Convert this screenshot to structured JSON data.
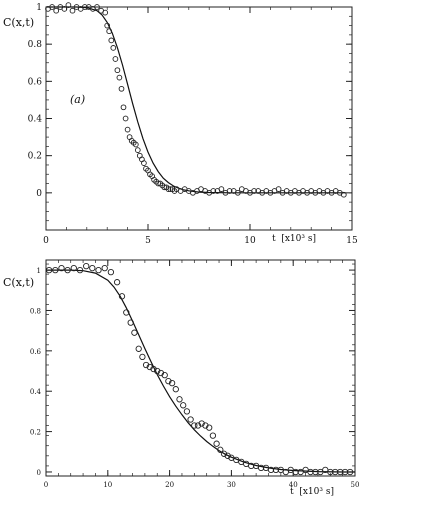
{
  "chart_data": [
    {
      "type": "scatter",
      "ylabel": "C(x,t)",
      "xlabel": "t  [x10³ s]",
      "annotation": "(a)",
      "xlim": [
        0,
        15
      ],
      "ylim": [
        -0.2,
        1.0
      ],
      "xticks": [
        0,
        5,
        10,
        15
      ],
      "xtick_labels": [
        "0",
        "5",
        "10",
        "15"
      ],
      "yticks": [
        0,
        0.2,
        0.4,
        0.6,
        0.8,
        1
      ],
      "ytick_labels": [
        "0",
        "0.2",
        "0.4",
        "0.6",
        "0.8",
        "1"
      ],
      "series": [
        {
          "kind": "markers",
          "x": [
            0.1,
            0.3,
            0.5,
            0.7,
            0.9,
            1.1,
            1.3,
            1.5,
            1.7,
            1.9,
            2.1,
            2.3,
            2.5,
            2.7,
            2.9,
            3.0,
            3.1,
            3.2,
            3.3,
            3.4,
            3.5,
            3.6,
            3.7,
            3.8,
            3.9,
            4.0,
            4.1,
            4.2,
            4.3,
            4.4,
            4.5,
            4.6,
            4.7,
            4.8,
            4.9,
            5.0,
            5.1,
            5.2,
            5.3,
            5.4,
            5.5,
            5.6,
            5.7,
            5.8,
            5.9,
            6.0,
            6.1,
            6.2,
            6.3,
            6.4,
            6.6,
            6.8,
            7.0,
            7.2,
            7.4,
            7.6,
            7.8,
            8.0,
            8.2,
            8.4,
            8.6,
            8.8,
            9.0,
            9.2,
            9.4,
            9.6,
            9.8,
            10.0,
            10.2,
            10.4,
            10.6,
            10.8,
            11.0,
            11.2,
            11.4,
            11.6,
            11.8,
            12.0,
            12.2,
            12.4,
            12.6,
            12.8,
            13.0,
            13.2,
            13.4,
            13.6,
            13.8,
            14.0,
            14.2,
            14.4,
            14.6
          ],
          "y": [
            0.99,
            1.0,
            0.98,
            1.0,
            0.99,
            1.01,
            0.98,
            1.0,
            0.99,
            1.0,
            1.0,
            0.99,
            1.0,
            0.98,
            0.97,
            0.9,
            0.87,
            0.82,
            0.78,
            0.72,
            0.66,
            0.62,
            0.56,
            0.46,
            0.4,
            0.34,
            0.3,
            0.28,
            0.27,
            0.26,
            0.23,
            0.2,
            0.18,
            0.16,
            0.13,
            0.12,
            0.1,
            0.09,
            0.07,
            0.06,
            0.05,
            0.05,
            0.04,
            0.03,
            0.03,
            0.02,
            0.02,
            0.02,
            0.01,
            0.02,
            0.01,
            0.02,
            0.01,
            0.0,
            0.01,
            0.02,
            0.01,
            0.0,
            0.01,
            0.01,
            0.02,
            0.0,
            0.01,
            0.01,
            0.0,
            0.02,
            0.01,
            0.0,
            0.01,
            0.01,
            0.0,
            0.01,
            0.0,
            0.01,
            0.02,
            0.0,
            0.01,
            0.0,
            0.01,
            0.0,
            0.01,
            0.0,
            0.01,
            0.0,
            0.01,
            0.0,
            0.01,
            0.0,
            0.01,
            0.0,
            -0.01
          ]
        },
        {
          "kind": "line",
          "x": [
            0,
            0.5,
            1,
            1.5,
            2,
            2.5,
            2.75,
            3,
            3.25,
            3.5,
            3.75,
            4,
            4.25,
            4.5,
            4.75,
            5,
            5.25,
            5.5,
            5.75,
            6,
            6.25,
            6.5,
            6.75,
            7,
            7.5,
            8,
            9,
            10,
            11,
            12,
            13,
            14,
            14.7
          ],
          "y": [
            1.0,
            1.0,
            1.0,
            1.0,
            0.997,
            0.98,
            0.957,
            0.917,
            0.859,
            0.781,
            0.688,
            0.584,
            0.479,
            0.381,
            0.293,
            0.219,
            0.16,
            0.114,
            0.079,
            0.055,
            0.037,
            0.025,
            0.016,
            0.011,
            0.004,
            0.002,
            0.0,
            0.0,
            0.0,
            0.0,
            0.0,
            0.0,
            0.0
          ]
        }
      ]
    },
    {
      "type": "scatter",
      "ylabel": "C(x,t)",
      "xlabel": "t  [x10³ s]",
      "xlim": [
        0,
        50
      ],
      "ylim": [
        -0.02,
        1.05
      ],
      "xticks": [
        0,
        10,
        20,
        30,
        40,
        50
      ],
      "xtick_labels": [
        "0",
        "10",
        "20",
        "30",
        "40",
        "50"
      ],
      "yticks": [
        0,
        0.2,
        0.4,
        0.6,
        0.8,
        1
      ],
      "ytick_labels": [
        "0",
        "0.2",
        "0.4",
        "0.6",
        "0.8",
        "1"
      ],
      "series": [
        {
          "kind": "markers",
          "x": [
            0.5,
            1.5,
            2.5,
            3.5,
            4.5,
            5.5,
            6.5,
            7.5,
            8.5,
            9.5,
            10.5,
            11.5,
            12.3,
            13.0,
            13.7,
            14.3,
            15.0,
            15.6,
            16.2,
            16.8,
            17.4,
            18.0,
            18.6,
            19.2,
            19.8,
            20.4,
            21.0,
            21.6,
            22.2,
            22.8,
            23.4,
            24.0,
            24.6,
            25.2,
            25.8,
            26.4,
            27.0,
            27.6,
            28.2,
            28.8,
            29.4,
            30.0,
            30.8,
            31.6,
            32.4,
            33.2,
            34.0,
            34.8,
            35.6,
            36.4,
            37.2,
            38.0,
            38.8,
            39.6,
            40.4,
            41.2,
            42.0,
            42.8,
            43.6,
            44.4,
            45.2,
            46.0,
            46.8,
            47.6,
            48.4,
            49.2
          ],
          "y": [
            1.0,
            1.0,
            1.01,
            1.0,
            1.01,
            1.0,
            1.02,
            1.01,
            1.0,
            1.01,
            0.99,
            0.94,
            0.87,
            0.79,
            0.74,
            0.69,
            0.61,
            0.57,
            0.53,
            0.52,
            0.51,
            0.5,
            0.49,
            0.48,
            0.45,
            0.44,
            0.41,
            0.36,
            0.33,
            0.3,
            0.26,
            0.23,
            0.23,
            0.24,
            0.23,
            0.22,
            0.18,
            0.14,
            0.11,
            0.09,
            0.08,
            0.07,
            0.06,
            0.05,
            0.04,
            0.03,
            0.03,
            0.02,
            0.02,
            0.01,
            0.01,
            0.01,
            0.0,
            0.01,
            0.0,
            0.0,
            0.01,
            0.0,
            0.0,
            0.0,
            0.01,
            0.0,
            0.0,
            0.0,
            0.0,
            0.0
          ]
        },
        {
          "kind": "line",
          "x": [
            0,
            2,
            4,
            6,
            8,
            10,
            11,
            12,
            13,
            14,
            15,
            16,
            17,
            18,
            19,
            20,
            21,
            22,
            23,
            24,
            25,
            26,
            27,
            28,
            29,
            30,
            32,
            34,
            36,
            38,
            40,
            44,
            48,
            50
          ],
          "y": [
            1.0,
            1.0,
            1.0,
            0.997,
            0.985,
            0.95,
            0.916,
            0.87,
            0.813,
            0.748,
            0.68,
            0.611,
            0.545,
            0.483,
            0.426,
            0.373,
            0.326,
            0.283,
            0.244,
            0.209,
            0.178,
            0.151,
            0.127,
            0.106,
            0.088,
            0.073,
            0.049,
            0.032,
            0.02,
            0.012,
            0.007,
            0.002,
            0.0,
            0.0
          ]
        }
      ]
    }
  ]
}
